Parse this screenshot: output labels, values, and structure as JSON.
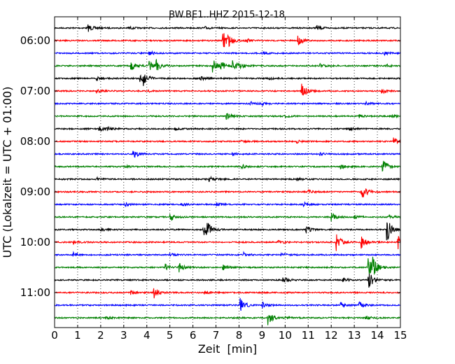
{
  "chart_data": {
    "type": "line",
    "chart_kind": "seismogram dayplot",
    "title": "BW.BE1..HHZ 2015-12-18",
    "xlabel": "Zeit  [min]",
    "ylabel": "UTC (Lokalzeit = UTC + 01:00)",
    "xlim": [
      0,
      15
    ],
    "x_ticks": [
      "0",
      "1",
      "2",
      "3",
      "4",
      "5",
      "6",
      "7",
      "8",
      "9",
      "10",
      "11",
      "12",
      "13",
      "14",
      "15"
    ],
    "y_tick_labels": [
      "06:00",
      "07:00",
      "08:00",
      "09:00",
      "10:00",
      "11:00"
    ],
    "grid": "vertical dotted at each minute",
    "trace_minutes": 15,
    "trace_colors": [
      "#000000",
      "#ff0000",
      "#0000ff",
      "#008000"
    ],
    "traces": [
      {
        "start": "05:45",
        "events": [
          [
            1.45,
            5
          ],
          [
            11.35,
            4
          ],
          [
            3.2,
            2
          ],
          [
            6.5,
            2
          ]
        ]
      },
      {
        "start": "06:00",
        "events": [
          [
            7.3,
            16
          ],
          [
            7.5,
            6
          ],
          [
            10.55,
            7
          ],
          [
            8.3,
            3
          ]
        ]
      },
      {
        "start": "06:15",
        "events": [
          [
            4.1,
            3
          ],
          [
            9.0,
            2
          ],
          [
            14.3,
            2
          ]
        ]
      },
      {
        "start": "06:30",
        "events": [
          [
            3.3,
            7
          ],
          [
            4.1,
            8
          ],
          [
            4.4,
            8
          ],
          [
            6.85,
            10
          ],
          [
            7.2,
            6
          ],
          [
            7.7,
            9
          ],
          [
            8.0,
            4
          ],
          [
            11.5,
            3
          ],
          [
            14.4,
            2
          ]
        ]
      },
      {
        "start": "06:45",
        "events": [
          [
            1.8,
            4
          ],
          [
            3.7,
            7
          ],
          [
            3.85,
            7
          ],
          [
            6.3,
            3
          ],
          [
            9.3,
            2
          ]
        ]
      },
      {
        "start": "07:00",
        "events": [
          [
            10.7,
            12
          ],
          [
            14.15,
            5
          ],
          [
            1.8,
            2
          ],
          [
            4.0,
            2
          ]
        ]
      },
      {
        "start": "07:15",
        "events": [
          [
            8.5,
            3
          ],
          [
            9.0,
            2
          ],
          [
            13.5,
            2
          ]
        ]
      },
      {
        "start": "07:30",
        "events": [
          [
            7.45,
            6
          ],
          [
            10.0,
            2
          ],
          [
            13.2,
            3
          ],
          [
            14.6,
            2
          ]
        ]
      },
      {
        "start": "07:45",
        "events": [
          [
            1.9,
            4
          ],
          [
            2.3,
            3
          ],
          [
            5.2,
            2
          ],
          [
            12.8,
            2
          ]
        ]
      },
      {
        "start": "08:00",
        "events": [
          [
            14.7,
            6
          ],
          [
            8.0,
            2
          ],
          [
            10.5,
            2
          ]
        ]
      },
      {
        "start": "08:15",
        "events": [
          [
            3.4,
            6
          ],
          [
            7.7,
            2
          ],
          [
            11.5,
            2
          ]
        ]
      },
      {
        "start": "08:30",
        "events": [
          [
            14.2,
            13
          ],
          [
            3.0,
            3
          ],
          [
            8.1,
            3
          ],
          [
            12.4,
            3
          ]
        ]
      },
      {
        "start": "08:45",
        "events": [
          [
            1.75,
            3
          ],
          [
            6.7,
            4
          ],
          [
            10.5,
            2
          ]
        ]
      },
      {
        "start": "09:00",
        "events": [
          [
            13.3,
            13
          ],
          [
            11.0,
            3
          ]
        ]
      },
      {
        "start": "09:15",
        "events": [
          [
            3.0,
            3
          ],
          [
            5.5,
            2
          ],
          [
            7.0,
            3
          ],
          [
            10.8,
            3
          ]
        ]
      },
      {
        "start": "09:30",
        "events": [
          [
            5.0,
            7
          ],
          [
            12.0,
            6
          ],
          [
            13.0,
            3
          ],
          [
            14.5,
            3
          ]
        ]
      },
      {
        "start": "09:45",
        "events": [
          [
            6.45,
            10
          ],
          [
            6.6,
            8
          ],
          [
            10.9,
            5
          ],
          [
            14.4,
            18
          ],
          [
            2.0,
            2
          ]
        ]
      },
      {
        "start": "10:00",
        "events": [
          [
            12.2,
            13
          ],
          [
            13.3,
            9
          ],
          [
            14.9,
            14
          ],
          [
            0.8,
            3
          ],
          [
            9.7,
            3
          ]
        ]
      },
      {
        "start": "10:15",
        "events": [
          [
            0.8,
            3
          ],
          [
            5.0,
            2
          ],
          [
            8.2,
            3
          ],
          [
            9.8,
            3
          ]
        ]
      },
      {
        "start": "10:30",
        "events": [
          [
            4.8,
            5
          ],
          [
            5.4,
            6
          ],
          [
            7.3,
            4
          ],
          [
            13.6,
            14
          ],
          [
            13.8,
            10
          ]
        ]
      },
      {
        "start": "10:45",
        "events": [
          [
            9.9,
            6
          ],
          [
            13.6,
            14
          ],
          [
            12.5,
            3
          ]
        ]
      },
      {
        "start": "11:00",
        "events": [
          [
            4.3,
            8
          ],
          [
            3.3,
            3
          ],
          [
            6.5,
            2
          ]
        ]
      },
      {
        "start": "11:15",
        "events": [
          [
            8.05,
            10
          ],
          [
            9.0,
            4
          ],
          [
            12.4,
            4
          ],
          [
            13.2,
            4
          ]
        ]
      },
      {
        "start": "11:30",
        "events": [
          [
            9.25,
            10
          ],
          [
            10.0,
            2
          ],
          [
            13.5,
            3
          ],
          [
            2.2,
            2
          ]
        ]
      }
    ]
  }
}
